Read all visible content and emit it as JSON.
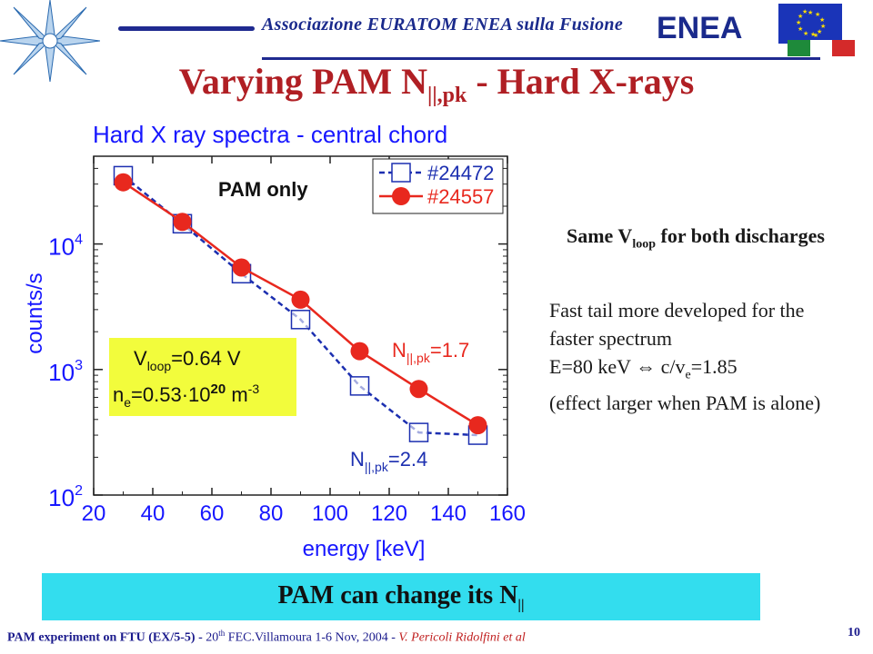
{
  "header": {
    "association": "Associazione EURATOM ENEA sulla Fusione",
    "logo_text": "ENEA"
  },
  "slide": {
    "title_main": "Varying PAM N",
    "title_sub": "||,pk",
    "title_rest": " - Hard X-rays"
  },
  "notes": {
    "heading_a": "Same V",
    "heading_sub": "loop",
    "heading_b": " for both discharges",
    "line1": "Fast tail more developed for the faster spectrum",
    "line2a": "E=80 keV ⇔ c/v",
    "line2_sub": "e",
    "line2b": "=1.85",
    "line3": "(effect larger when PAM is alone)"
  },
  "banner": {
    "text": "PAM can change its N",
    "sub": "||"
  },
  "footer": {
    "part1": "PAM experiment on FTU (EX/5-5) - ",
    "num": "20",
    "sup": "th",
    "part2": " FEC.Villamoura 1-6 Nov, 2004 - ",
    "author": "V. Pericoli Ridolfini et al",
    "page": "10"
  },
  "chart_data": {
    "type": "line",
    "title": "Hard X ray spectra - central chord",
    "xlabel": "energy [keV]",
    "ylabel": "counts/s",
    "xlim": [
      20,
      160
    ],
    "ylim": [
      100,
      50000
    ],
    "yscale": "log",
    "x_ticks": [
      20,
      40,
      60,
      80,
      100,
      120,
      140,
      160
    ],
    "y_ticks": [
      {
        "value": 100,
        "base": "10",
        "exp": "2"
      },
      {
        "value": 1000,
        "base": "10",
        "exp": "3"
      },
      {
        "value": 10000,
        "base": "10",
        "exp": "4"
      }
    ],
    "legend_position": "top-right",
    "series": [
      {
        "name": "#24472",
        "color": "#1c2fb0",
        "marker": "square",
        "line": "dashed",
        "x": [
          30,
          50,
          70,
          90,
          110,
          130,
          150
        ],
        "y": [
          35000,
          14500,
          5800,
          2500,
          740,
          315,
          300
        ]
      },
      {
        "name": "#24557",
        "color": "#e8281e",
        "marker": "circle",
        "line": "solid",
        "x": [
          30,
          50,
          70,
          90,
          110,
          130,
          150
        ],
        "y": [
          31000,
          15000,
          6500,
          3600,
          1400,
          700,
          360
        ]
      }
    ],
    "annotations": {
      "pam_only": "PAM  only",
      "n_red_main": "N",
      "n_red_sub": "||,pk",
      "n_red_val": "=1.7",
      "n_blue_main": "N",
      "n_blue_sub": "||,pk",
      "n_blue_val": "=2.4",
      "vloop_main": "V",
      "vloop_sub": "loop",
      "vloop_val": "=0.64 V",
      "ne_main": "n",
      "ne_sub": "e",
      "ne_val": "=0.53·10",
      "ne_exp": "20",
      "ne_unit": " m",
      "ne_unit_exp": "-3"
    },
    "colors": {
      "axes": "#1717ff",
      "box_fill": "#f2fc3c"
    }
  }
}
